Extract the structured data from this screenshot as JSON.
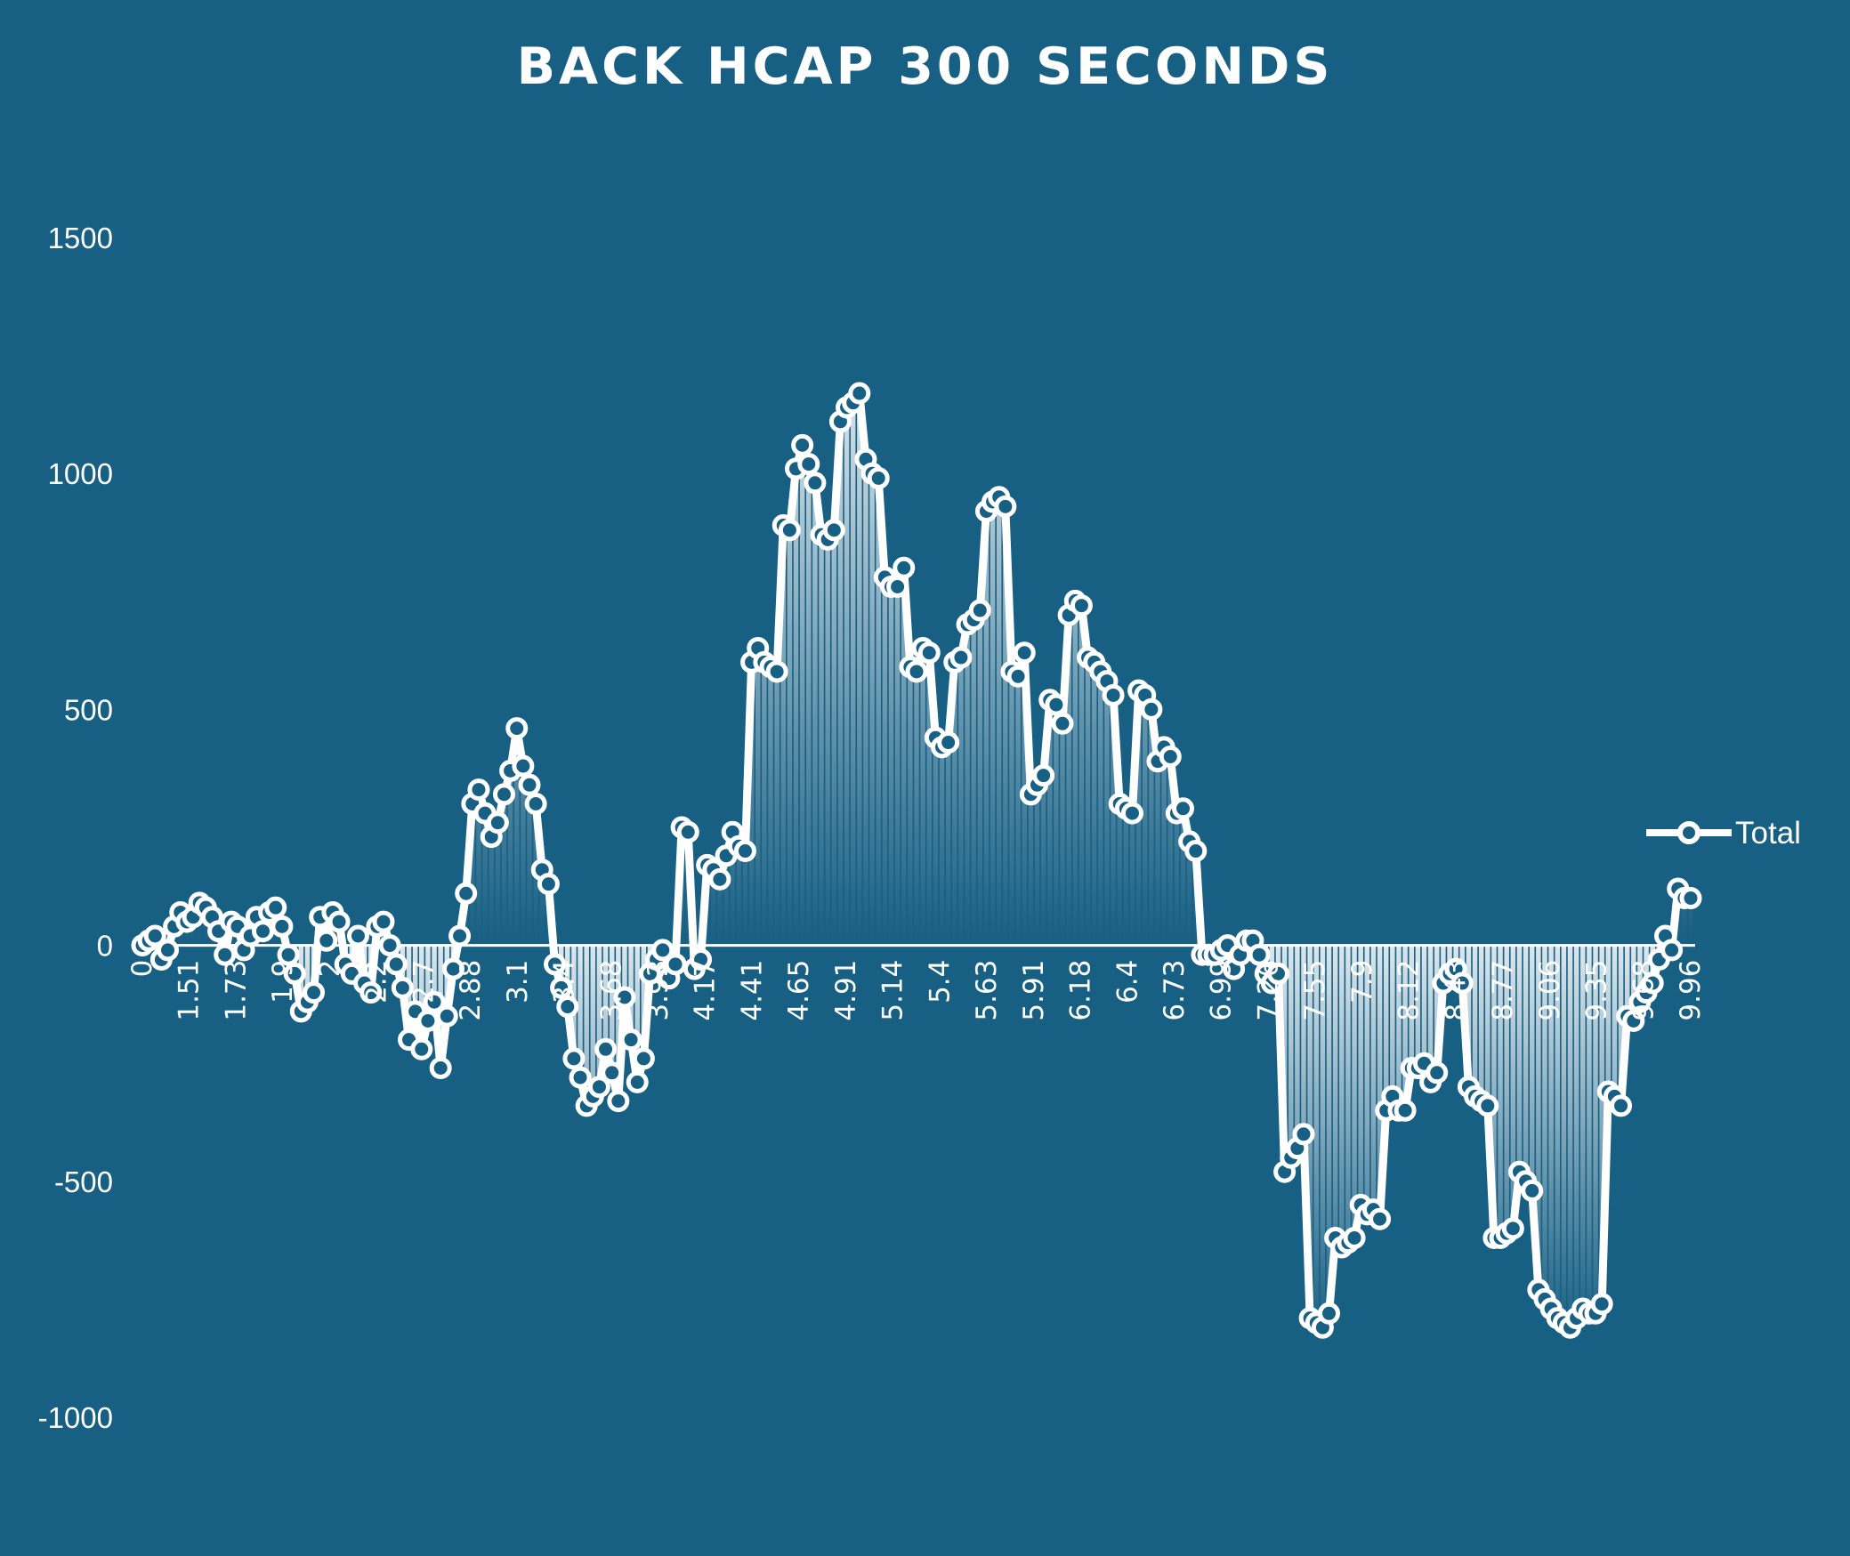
{
  "chart_data": {
    "type": "area",
    "title": "BACK HCAP 300 SECONDS",
    "xlabel": "",
    "ylabel": "",
    "ylim": [
      -1000,
      1500
    ],
    "yticks": [
      1500,
      1000,
      500,
      0,
      -500,
      -1000
    ],
    "grid": false,
    "legend": {
      "position": "right",
      "entries": [
        "Total"
      ]
    },
    "colors": {
      "background": "#175f83",
      "line": "#ffffff",
      "fill": "#ffffff"
    },
    "xtick_labels": [
      "0",
      "1.51",
      "1.73",
      "1.9",
      "2",
      "2.2",
      "2.7",
      "2.88",
      "3.1",
      "3.4",
      "3.68",
      "3.93",
      "4.17",
      "4.41",
      "4.65",
      "4.91",
      "5.14",
      "5.4",
      "5.63",
      "5.91",
      "6.18",
      "6.4",
      "6.73",
      "6.99",
      "7.26",
      "7.55",
      "7.9",
      "8.12",
      "8.43",
      "8.77",
      "9.06",
      "9.35",
      "9.68",
      "9.96"
    ],
    "series": [
      {
        "name": "Total",
        "values": [
          0,
          10,
          20,
          -30,
          -10,
          40,
          70,
          50,
          60,
          90,
          80,
          60,
          30,
          -20,
          50,
          40,
          -10,
          20,
          60,
          30,
          70,
          80,
          40,
          -20,
          -60,
          -140,
          -120,
          -100,
          60,
          10,
          70,
          50,
          -40,
          -60,
          20,
          -80,
          -100,
          40,
          50,
          0,
          -40,
          -90,
          -200,
          -140,
          -220,
          -160,
          -120,
          -260,
          -150,
          -50,
          20,
          110,
          300,
          330,
          280,
          230,
          260,
          320,
          370,
          460,
          380,
          340,
          300,
          160,
          130,
          -40,
          -90,
          -130,
          -240,
          -280,
          -340,
          -320,
          -300,
          -220,
          -270,
          -330,
          -110,
          -200,
          -290,
          -240,
          -60,
          -30,
          -10,
          -70,
          -40,
          250,
          240,
          -50,
          -30,
          170,
          160,
          140,
          190,
          240,
          210,
          200,
          600,
          630,
          600,
          590,
          580,
          890,
          880,
          1010,
          1060,
          1020,
          980,
          870,
          860,
          880,
          1110,
          1140,
          1150,
          1170,
          1030,
          1000,
          990,
          780,
          760,
          760,
          800,
          590,
          580,
          630,
          620,
          440,
          420,
          430,
          600,
          610,
          680,
          690,
          710,
          920,
          940,
          950,
          930,
          580,
          570,
          620,
          320,
          340,
          360,
          520,
          510,
          470,
          700,
          730,
          720,
          610,
          600,
          580,
          560,
          530,
          300,
          290,
          280,
          540,
          530,
          500,
          390,
          420,
          400,
          280,
          290,
          220,
          200,
          -20,
          -20,
          -20,
          -10,
          0,
          -50,
          -20,
          10,
          10,
          -20,
          -60,
          -80,
          -60,
          -480,
          -450,
          -430,
          -400,
          -790,
          -800,
          -810,
          -780,
          -620,
          -640,
          -630,
          -620,
          -550,
          -570,
          -560,
          -580,
          -350,
          -320,
          -350,
          -350,
          -260,
          -260,
          -250,
          -290,
          -270,
          -80,
          -60,
          -50,
          -80,
          -300,
          -320,
          -330,
          -340,
          -620,
          -620,
          -610,
          -600,
          -480,
          -500,
          -520,
          -730,
          -750,
          -770,
          -790,
          -800,
          -810,
          -790,
          -770,
          -780,
          -780,
          -760,
          -310,
          -320,
          -340,
          -150,
          -160,
          -120,
          -100,
          -80,
          -30,
          20,
          -10,
          120,
          100,
          100
        ]
      }
    ]
  }
}
